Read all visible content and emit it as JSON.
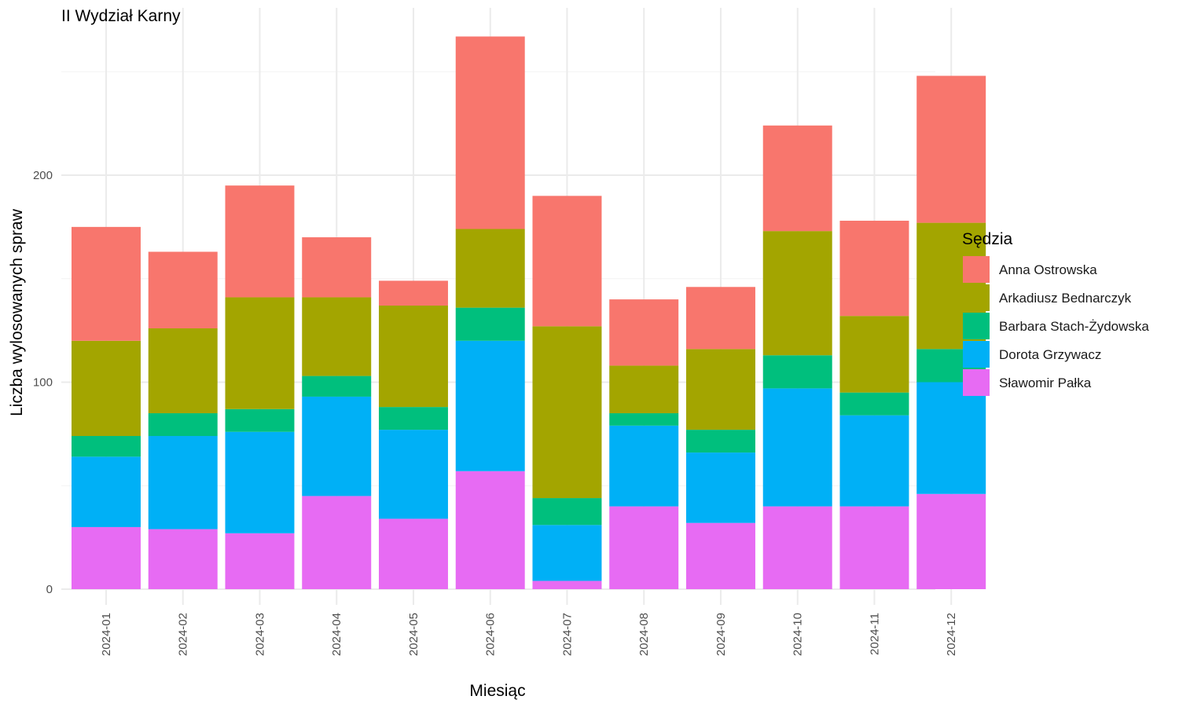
{
  "chart_data": {
    "type": "bar",
    "stacked": true,
    "title": "II Wydział Karny",
    "xlabel": "Miesiąc",
    "ylabel": "Liczba wylosowanych spraw",
    "ylim": [
      0,
      280
    ],
    "yticks": [
      0,
      100,
      200
    ],
    "grid": true,
    "legend": {
      "title": "Sędzia",
      "placement": "right"
    },
    "categories": [
      "2024-01",
      "2024-02",
      "2024-03",
      "2024-04",
      "2024-05",
      "2024-06",
      "2024-07",
      "2024-08",
      "2024-09",
      "2024-10",
      "2024-11",
      "2024-12"
    ],
    "stack_order": [
      "Sławomir Pałka",
      "Dorota Grzywacz",
      "Barbara Stach-Żydowska",
      "Arkadiusz Bednarczyk",
      "Anna Ostrowska"
    ],
    "series": [
      {
        "name": "Anna Ostrowska",
        "color": "#F8766D",
        "values": [
          55,
          37,
          54,
          29,
          12,
          93,
          63,
          32,
          30,
          51,
          46,
          71
        ]
      },
      {
        "name": "Arkadiusz Bednarczyk",
        "color": "#A3A500",
        "values": [
          46,
          41,
          54,
          38,
          49,
          38,
          83,
          23,
          39,
          60,
          37,
          61
        ]
      },
      {
        "name": "Barbara Stach-Żydowska",
        "color": "#00BF7D",
        "values": [
          10,
          11,
          11,
          10,
          11,
          16,
          13,
          6,
          11,
          16,
          11,
          16
        ]
      },
      {
        "name": "Dorota Grzywacz",
        "color": "#00B0F6",
        "values": [
          34,
          45,
          49,
          48,
          43,
          63,
          27,
          39,
          34,
          57,
          44,
          54
        ]
      },
      {
        "name": "Sławomir Pałka",
        "color": "#E76BF3",
        "values": [
          30,
          29,
          27,
          45,
          34,
          57,
          4,
          40,
          32,
          40,
          40,
          46
        ]
      }
    ]
  }
}
